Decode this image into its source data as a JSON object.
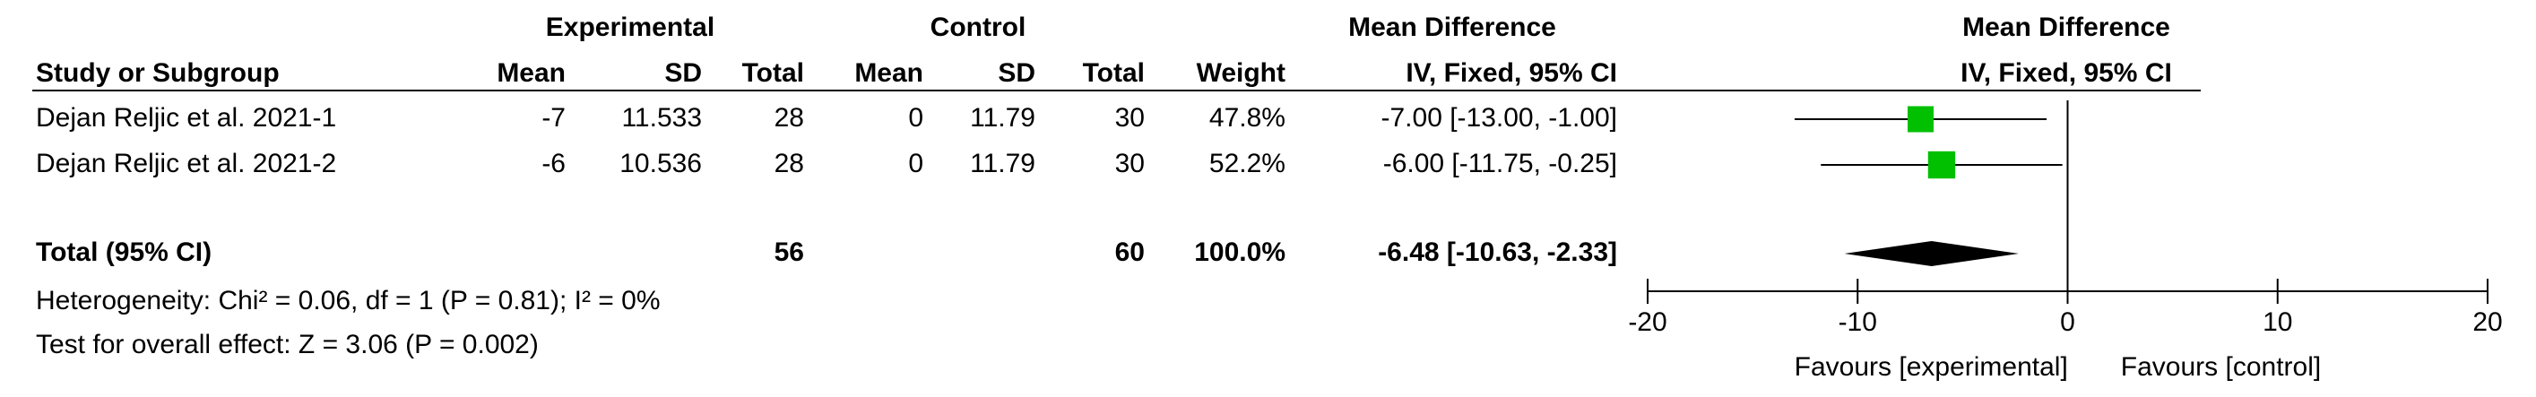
{
  "table": {
    "group_headers": [
      "Experimental",
      "Control",
      "Mean Difference"
    ],
    "headers": [
      "Study or Subgroup",
      "Mean",
      "SD",
      "Total",
      "Mean",
      "SD",
      "Total",
      "Weight",
      "IV, Fixed, 95% CI"
    ],
    "rows": [
      [
        "Dejan Reljic et al. 2021-1",
        "-7",
        "11.533",
        "28",
        "0",
        "11.79",
        "30",
        "47.8%",
        "-7.00 [-13.00, -1.00]"
      ],
      [
        "Dejan Reljic et al. 2021-2",
        "-6",
        "10.536",
        "28",
        "0",
        "11.79",
        "30",
        "52.2%",
        "-6.00 [-11.75, -0.25]"
      ]
    ],
    "total_row": [
      "Total (95% CI)",
      null,
      null,
      "56",
      null,
      null,
      "60",
      "100.0%",
      "-6.48 [-10.63, -2.33]"
    ],
    "heterogeneity": "Heterogeneity: Chi² = 0.06, df = 1 (P = 0.81); I² = 0%",
    "overall_effect": "Test for overall effect: Z = 3.06 (P = 0.002)"
  },
  "chart_data": {
    "type": "forest",
    "title": "Mean Difference",
    "subtitle": "IV, Fixed, 95% CI",
    "values": [
      -7.0,
      -6.0
    ],
    "ci_lower": [
      -13.0,
      -11.75
    ],
    "ci_upper": [
      -1.0,
      -0.25
    ],
    "weights": [
      47.8,
      52.2
    ],
    "total": {
      "value": -6.48,
      "lower": -10.63,
      "upper": -2.33
    },
    "xlim": [
      -20,
      20
    ],
    "xticks": [
      -20,
      -10,
      0,
      10,
      20
    ],
    "favours_left": "Favours [experimental]",
    "favours_right": "Favours [control]",
    "color": "#00c000"
  }
}
